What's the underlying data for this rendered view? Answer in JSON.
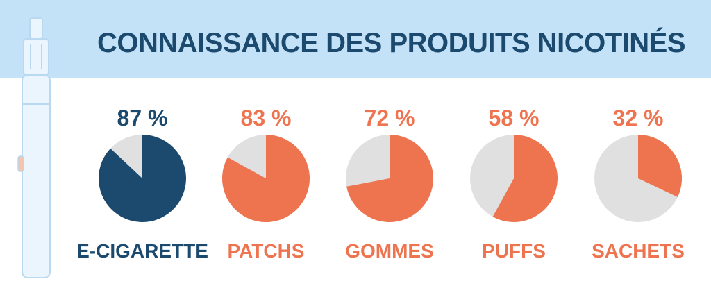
{
  "title": "CONNAISSANCE DES PRODUITS NICOTINÉS",
  "colors": {
    "banner": "#c4e2f7",
    "primary": "#1b4a6e",
    "accent": "#ee7450",
    "remainder": "#e0e0e0"
  },
  "chart_data": {
    "type": "pie",
    "title": "CONNAISSANCE DES PRODUITS NICOTINÉS",
    "unit": "%",
    "items": [
      {
        "label": "E-CIGARETTE",
        "value": 87,
        "value_label": "87 %",
        "color": "#1b4a6e"
      },
      {
        "label": "PATCHS",
        "value": 83,
        "value_label": "83 %",
        "color": "#ee7450"
      },
      {
        "label": "GOMMES",
        "value": 72,
        "value_label": "72 %",
        "color": "#ee7450"
      },
      {
        "label": "PUFFS",
        "value": 58,
        "value_label": "58 %",
        "color": "#ee7450"
      },
      {
        "label": "SACHETS",
        "value": 32,
        "value_label": "32 %",
        "color": "#ee7450"
      }
    ]
  }
}
